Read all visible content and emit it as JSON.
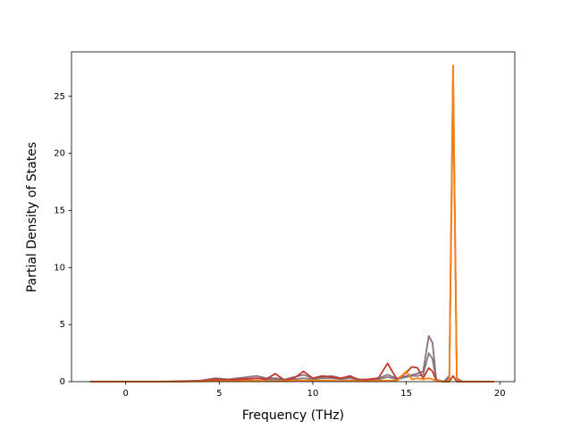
{
  "chart_data": {
    "type": "line",
    "xlabel": "Frequency (THz)",
    "ylabel": "Partial Density of States",
    "x": [
      -1.9,
      0,
      1.5,
      3,
      4,
      4.8,
      5.5,
      6,
      6.5,
      7,
      7.5,
      8,
      8.5,
      9,
      9.5,
      10,
      10.5,
      11,
      11.5,
      12,
      12.5,
      13,
      13.5,
      14,
      14.5,
      15,
      15.3,
      15.6,
      15.9,
      16.2,
      16.4,
      16.6,
      17,
      17.3,
      17.5,
      17.7,
      18,
      19,
      19.7
    ],
    "series": [
      {
        "color": "#7f7f7f",
        "values": [
          0,
          0,
          0,
          0.02,
          0.05,
          0.15,
          0.1,
          0.15,
          0.2,
          0.3,
          0.2,
          0.2,
          0.1,
          0.2,
          0.3,
          0.2,
          0.3,
          0.3,
          0.2,
          0.3,
          0.1,
          0.1,
          0.2,
          0.4,
          0.2,
          0.4,
          0.5,
          0.5,
          0.6,
          2.5,
          2.0,
          0.1,
          0,
          0.3,
          26,
          0.2,
          0,
          0,
          0
        ]
      },
      {
        "color": "#8c6d80",
        "values": [
          0,
          0,
          0,
          0.05,
          0.1,
          0.3,
          0.2,
          0.3,
          0.4,
          0.5,
          0.3,
          0.3,
          0.2,
          0.4,
          0.6,
          0.3,
          0.4,
          0.5,
          0.3,
          0.4,
          0.2,
          0.2,
          0.3,
          0.6,
          0.3,
          0.5,
          0.6,
          0.7,
          0.9,
          4.0,
          3.4,
          0.2,
          0,
          0.5,
          27.7,
          0.3,
          0,
          0,
          0
        ]
      },
      {
        "color": "#c0392b",
        "values": [
          0,
          0,
          0,
          0.02,
          0.05,
          0.2,
          0.15,
          0.2,
          0.25,
          0.3,
          0.2,
          0.7,
          0.1,
          0.3,
          0.9,
          0.3,
          0.5,
          0.4,
          0.3,
          0.5,
          0.1,
          0.2,
          0.3,
          1.6,
          0.2,
          0.8,
          1.3,
          1.2,
          0.3,
          1.2,
          0.9,
          0.1,
          0,
          0,
          0.5,
          0,
          0,
          0,
          0
        ]
      },
      {
        "color": "#ff7f0e",
        "values": [
          0,
          0,
          0,
          0,
          0.02,
          0.05,
          0.05,
          0.05,
          0.1,
          0.1,
          0.05,
          0.05,
          0.05,
          0.1,
          0.1,
          0.1,
          0.1,
          0.1,
          0.05,
          0.1,
          0.05,
          0.05,
          0.1,
          0.1,
          0.1,
          0.9,
          0.2,
          0.3,
          0.2,
          0.3,
          0.2,
          0.1,
          0,
          0.1,
          27.7,
          0.1,
          0,
          0,
          0
        ]
      }
    ],
    "xlim": [
      -2.9,
      20.8
    ],
    "xticks": [
      0,
      5,
      10,
      15,
      20
    ],
    "ylim": [
      0,
      28.9
    ],
    "yticks": [
      0,
      5,
      10,
      15,
      20,
      25
    ]
  }
}
